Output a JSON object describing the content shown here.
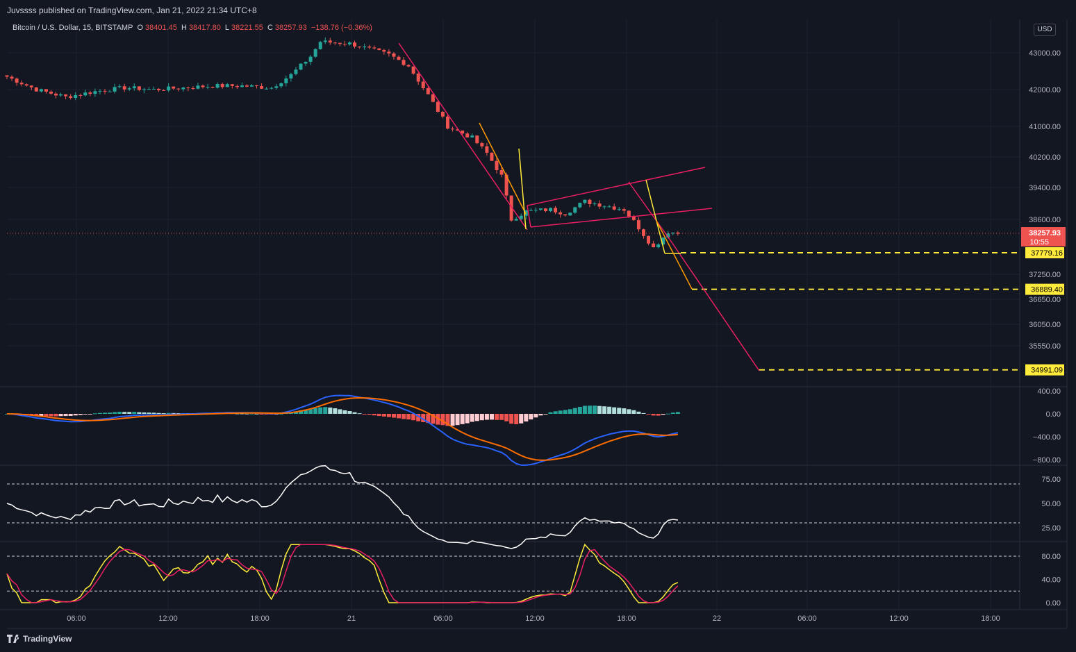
{
  "header": {
    "publisher": "Juvssss published on TradingView.com, Jan 21, 2022 21:34 UTC+8",
    "symbol": "Bitcoin / U.S. Dollar, 15, BITSTAMP",
    "open_label": "O",
    "open": "38401.45",
    "high_label": "H",
    "high": "38417.80",
    "low_label": "L",
    "low": "38221.55",
    "close_label": "C",
    "close": "38257.93",
    "change": "−138.76 (−0.36%)",
    "currency": "USD"
  },
  "footer": {
    "brand": "TradingView"
  },
  "colors": {
    "background": "#131722",
    "up": "#26a69a",
    "down": "#ef5350",
    "grid": "#1e222d",
    "text": "#b2b5be",
    "channel": "#e91e63",
    "target_line": "#ffeb3b",
    "fib_orange": "#ff9800",
    "macd": "#2962ff",
    "signal": "#ff6d00",
    "rsi": "#ffffff",
    "stoch_k": "#ffeb3b",
    "stoch_d": "#e91e63"
  },
  "chart_data": {
    "type": "candlestick",
    "symbol": "Bitcoin / U.S. Dollar",
    "interval": "15",
    "exchange": "BITSTAMP",
    "time_ticks": [
      "06:00",
      "12:00",
      "18:00",
      "21",
      "06:00",
      "12:00",
      "18:00",
      "22",
      "06:00",
      "12:00",
      "18:00"
    ],
    "price_ticks": [
      "43000.00",
      "42000.00",
      "41000.00",
      "40200.00",
      "39400.00",
      "38600.00",
      "37250.00",
      "36650.00",
      "36050.00",
      "35550.00"
    ],
    "price_ticks_values": [
      43000,
      42000,
      41000,
      40200,
      39400,
      38600,
      37250,
      36650,
      36050,
      35550
    ],
    "last_price": "38257.93",
    "countdown": "10:55",
    "price_path_anchors": [
      [
        0,
        42350
      ],
      [
        6,
        42000
      ],
      [
        12,
        41800
      ],
      [
        18,
        41950
      ],
      [
        24,
        42050
      ],
      [
        30,
        42000
      ],
      [
        36,
        42050
      ],
      [
        42,
        42100
      ],
      [
        48,
        42100
      ],
      [
        54,
        42050
      ],
      [
        58,
        42400
      ],
      [
        62,
        42900
      ],
      [
        64,
        43300
      ],
      [
        70,
        43250
      ],
      [
        74,
        43100
      ],
      [
        78,
        42950
      ],
      [
        82,
        42650
      ],
      [
        86,
        41850
      ],
      [
        90,
        41000
      ],
      [
        95,
        40700
      ],
      [
        98,
        40300
      ],
      [
        101,
        39700
      ],
      [
        103,
        38600
      ],
      [
        106,
        38800
      ],
      [
        111,
        38850
      ],
      [
        114,
        38750
      ],
      [
        118,
        39050
      ],
      [
        122,
        38950
      ],
      [
        126,
        38850
      ],
      [
        129,
        38400
      ],
      [
        132,
        37900
      ],
      [
        135,
        38300
      ],
      [
        137,
        38258
      ]
    ],
    "targets": [
      {
        "label": "37779.16",
        "value": 37779.16
      },
      {
        "label": "36889.40",
        "value": 36889.4
      },
      {
        "label": "34991.09",
        "value": 34991.09
      }
    ],
    "macd": {
      "ticks": [
        "400.00",
        "0.00",
        "−400.00",
        "−800.00"
      ],
      "tick_values": [
        400,
        0,
        -400,
        -800
      ]
    },
    "rsi": {
      "ticks": [
        "75.00",
        "50.00",
        "25.00"
      ],
      "tick_values": [
        75,
        50,
        25
      ],
      "bands": [
        70,
        30
      ]
    },
    "stoch": {
      "ticks": [
        "80.00",
        "40.00",
        "0.00"
      ],
      "tick_values": [
        80,
        40,
        0
      ],
      "bands": [
        80,
        20
      ]
    }
  }
}
